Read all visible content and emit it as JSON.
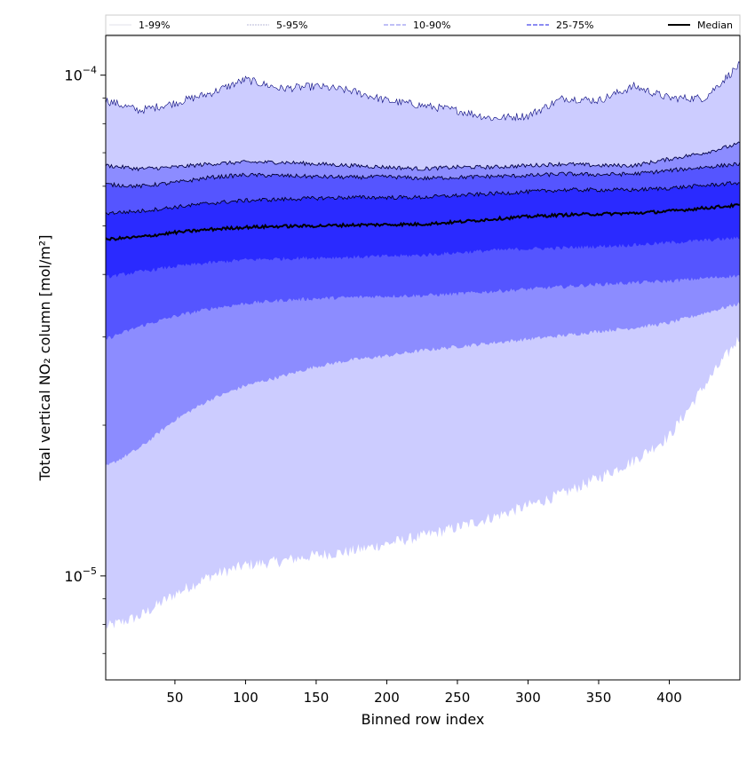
{
  "chart_data": {
    "type": "area",
    "title": "",
    "xlabel": "Binned row index",
    "ylabel": "Total vertical NO₂ column [mol/m²]",
    "y_scale": "log",
    "xlim": [
      1,
      450
    ],
    "ylim": [
      6.2e-06,
      0.00012
    ],
    "x_ticks": [
      50,
      100,
      150,
      200,
      250,
      300,
      350,
      400
    ],
    "y_major_ticks": [
      {
        "value": 1e-05,
        "base": "10",
        "exp": "−5"
      },
      {
        "value": 0.0001,
        "base": "10",
        "exp": "−4"
      }
    ],
    "grid": false,
    "legend": {
      "position": "top",
      "entries": [
        "1-99%",
        "5-95%",
        "10-90%",
        "25-75%",
        "Median"
      ]
    },
    "colors": {
      "band_1_99": "#ccccff",
      "band_5_95": "#8c8cff",
      "band_10_90": "#5555ff",
      "band_25_75": "#2a2aff",
      "median": "#000000",
      "legend_1_99": "#e0e0ea",
      "legend_5_95": "#b8b8d8",
      "legend_10_90": "#9a9af0",
      "legend_25_75": "#6666ee"
    },
    "x": [
      1,
      25,
      50,
      75,
      100,
      125,
      150,
      175,
      200,
      225,
      250,
      275,
      300,
      325,
      350,
      375,
      400,
      425,
      450
    ],
    "series": [
      {
        "name": "1-99%",
        "kind": "band",
        "lower": [
          7.9e-06,
          8.3e-06,
          9.2e-06,
          1e-05,
          1.05e-05,
          1.07e-05,
          1.1e-05,
          1.12e-05,
          1.16e-05,
          1.2e-05,
          1.25e-05,
          1.31e-05,
          1.38e-05,
          1.46e-05,
          1.57e-05,
          1.7e-05,
          1.9e-05,
          2.4e-05,
          3e-05
        ],
        "upper": [
          8.9e-05,
          8.5e-05,
          8.8e-05,
          9.2e-05,
          9.8e-05,
          9.4e-05,
          9.5e-05,
          9.3e-05,
          8.9e-05,
          8.7e-05,
          8.5e-05,
          8.2e-05,
          8.3e-05,
          9e-05,
          8.9e-05,
          9.5e-05,
          9e-05,
          9e-05,
          0.000105
        ]
      },
      {
        "name": "5-95%",
        "kind": "band",
        "lower": [
          1.65e-05,
          1.8e-05,
          2.05e-05,
          2.25e-05,
          2.4e-05,
          2.5e-05,
          2.62e-05,
          2.7e-05,
          2.75e-05,
          2.82e-05,
          2.87e-05,
          2.92e-05,
          2.97e-05,
          3.02e-05,
          3.08e-05,
          3.13e-05,
          3.2e-05,
          3.35e-05,
          3.5e-05
        ],
        "upper": [
          6.6e-05,
          6.5e-05,
          6.55e-05,
          6.65e-05,
          6.7e-05,
          6.7e-05,
          6.65e-05,
          6.6e-05,
          6.55e-05,
          6.5e-05,
          6.55e-05,
          6.55e-05,
          6.6e-05,
          6.65e-05,
          6.6e-05,
          6.6e-05,
          6.8e-05,
          7e-05,
          7.3e-05
        ]
      },
      {
        "name": "10-90%",
        "kind": "band",
        "lower": [
          2.97e-05,
          3.15e-05,
          3.3e-05,
          3.42e-05,
          3.5e-05,
          3.55e-05,
          3.58e-05,
          3.6e-05,
          3.62e-05,
          3.63e-05,
          3.66e-05,
          3.7e-05,
          3.74e-05,
          3.78e-05,
          3.82e-05,
          3.85e-05,
          3.88e-05,
          3.93e-05,
          3.98e-05
        ],
        "upper": [
          6.05e-05,
          6e-05,
          6.1e-05,
          6.25e-05,
          6.32e-05,
          6.3e-05,
          6.27e-05,
          6.25e-05,
          6.27e-05,
          6.22e-05,
          6.25e-05,
          6.28e-05,
          6.3e-05,
          6.35e-05,
          6.33e-05,
          6.35e-05,
          6.45e-05,
          6.55e-05,
          6.65e-05
        ]
      },
      {
        "name": "25-75%",
        "kind": "band",
        "lower": [
          3.95e-05,
          4.05e-05,
          4.15e-05,
          4.22e-05,
          4.28e-05,
          4.3e-05,
          4.32e-05,
          4.33e-05,
          4.35e-05,
          4.37e-05,
          4.42e-05,
          4.47e-05,
          4.5e-05,
          4.52e-05,
          4.55e-05,
          4.58e-05,
          4.63e-05,
          4.68e-05,
          4.73e-05
        ],
        "upper": [
          5.3e-05,
          5.35e-05,
          5.45e-05,
          5.55e-05,
          5.62e-05,
          5.65e-05,
          5.68e-05,
          5.7e-05,
          5.7e-05,
          5.7e-05,
          5.75e-05,
          5.8e-05,
          5.85e-05,
          5.9e-05,
          5.9e-05,
          5.9e-05,
          5.95e-05,
          6.02e-05,
          6.1e-05
        ]
      },
      {
        "name": "Median",
        "kind": "line",
        "values": [
          4.7e-05,
          4.75e-05,
          4.85e-05,
          4.92e-05,
          4.97e-05,
          4.99e-05,
          5e-05,
          5.02e-05,
          5.03e-05,
          5.04e-05,
          5.09e-05,
          5.16e-05,
          5.22e-05,
          5.26e-05,
          5.28e-05,
          5.3e-05,
          5.35e-05,
          5.43e-05,
          5.5e-05
        ]
      }
    ]
  }
}
